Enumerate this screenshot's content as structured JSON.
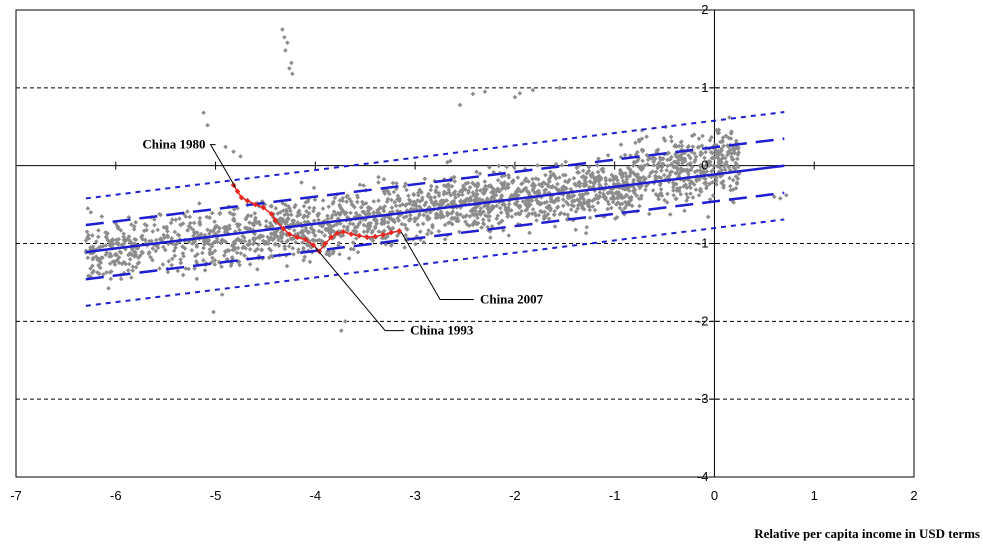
{
  "chart_data": {
    "type": "scatter",
    "title": "",
    "xlabel": "Relative per capita income in USD terms",
    "ylabel": "",
    "xlim": [
      -7,
      2
    ],
    "ylim": [
      -4,
      2
    ],
    "grid": "horizontal dashed",
    "x_ticks": [
      "-7",
      "-6",
      "-5",
      "-4",
      "-3",
      "-2",
      "-1",
      "0",
      "1",
      "2"
    ],
    "y_ticks": [
      "-4",
      "-3",
      "-2",
      "-1",
      "0",
      "1",
      "2"
    ],
    "colors": {
      "scatter": "#8c8c8c",
      "china": "#e8251f",
      "lines": "#1f1fd1",
      "grid": "#000000"
    },
    "regression": {
      "x_range": [
        -6.3,
        0.7
      ],
      "fit": {
        "slope": 0.1586,
        "intercept": -0.1118,
        "style": "solid"
      },
      "inner_band": {
        "offset": 0.348,
        "style": "long-dash"
      },
      "outer_band": {
        "offset": 0.69,
        "style": "short-dash"
      }
    },
    "china_path": {
      "name": "China",
      "points": [
        [
          -4.82,
          -0.25
        ],
        [
          -4.78,
          -0.33
        ],
        [
          -4.74,
          -0.41
        ],
        [
          -4.68,
          -0.45
        ],
        [
          -4.6,
          -0.5
        ],
        [
          -4.52,
          -0.54
        ],
        [
          -4.44,
          -0.62
        ],
        [
          -4.4,
          -0.7
        ],
        [
          -4.32,
          -0.81
        ],
        [
          -4.26,
          -0.88
        ],
        [
          -4.18,
          -0.92
        ],
        [
          -4.1,
          -0.95
        ],
        [
          -4.02,
          -1.02
        ],
        [
          -3.96,
          -1.1
        ],
        [
          -3.9,
          -1.0
        ],
        [
          -3.84,
          -0.92
        ],
        [
          -3.78,
          -0.87
        ],
        [
          -3.72,
          -0.85
        ],
        [
          -3.64,
          -0.88
        ],
        [
          -3.56,
          -0.9
        ],
        [
          -3.48,
          -0.92
        ],
        [
          -3.4,
          -0.91
        ],
        [
          -3.32,
          -0.89
        ],
        [
          -3.24,
          -0.86
        ],
        [
          -3.16,
          -0.84
        ]
      ]
    },
    "annotations": [
      {
        "label": "China 1980",
        "x": -5.1,
        "y": 0.27,
        "line_to": [
          -4.8,
          -0.28
        ],
        "elbow_x": -5.05
      },
      {
        "label": "China 1993",
        "x": -3.05,
        "y": -2.12,
        "line_to": [
          -4.0,
          -1.05
        ],
        "elbow_x": -3.3
      },
      {
        "label": "China 2007",
        "x": -2.35,
        "y": -1.72,
        "line_to": [
          -3.14,
          -0.85
        ],
        "elbow_x": -2.75
      }
    ],
    "scatter_extra_points": [
      [
        -4.33,
        1.75
      ],
      [
        -4.31,
        1.65
      ],
      [
        -4.28,
        1.58
      ],
      [
        -4.3,
        1.48
      ],
      [
        -4.26,
        1.25
      ],
      [
        -4.23,
        1.18
      ],
      [
        -4.24,
        1.32
      ],
      [
        -2.42,
        0.92
      ],
      [
        -2.3,
        0.95
      ],
      [
        -2.0,
        0.88
      ],
      [
        -1.95,
        0.93
      ],
      [
        -1.82,
        0.97
      ],
      [
        -1.55,
        1.0
      ],
      [
        -2.55,
        0.78
      ],
      [
        -5.12,
        0.68
      ],
      [
        -5.08,
        0.52
      ],
      [
        -4.9,
        0.24
      ],
      [
        -4.82,
        0.18
      ],
      [
        -4.75,
        0.12
      ],
      [
        -3.74,
        -2.12
      ],
      [
        -3.7,
        -2.0
      ],
      [
        -5.02,
        -1.88
      ],
      [
        -6.28,
        -0.55
      ],
      [
        -6.25,
        -0.6
      ],
      [
        0.15,
        0.62
      ],
      [
        0.6,
        -0.4
      ],
      [
        0.66,
        -0.42
      ],
      [
        0.72,
        -0.38
      ]
    ]
  }
}
